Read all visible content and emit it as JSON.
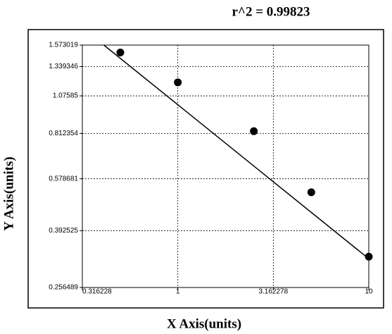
{
  "chart_data": {
    "type": "scatter",
    "annotation": "r^2  =  0.99823",
    "x_label": "X Axis(units)",
    "y_label": "Y Axis(units)",
    "x_log": true,
    "y_log": true,
    "grid": true,
    "color": "#000000",
    "x": [
      0.5,
      1,
      2.5,
      5,
      10
    ],
    "values": [
      1.488,
      1.19,
      0.826,
      0.523,
      0.323
    ],
    "fit_line": {
      "x": [
        0.41,
        10
      ],
      "y": [
        1.573019,
        0.318
      ]
    },
    "xlim": [
      0.316228,
      10
    ],
    "ylim": [
      0.256489,
      1.573019
    ],
    "xticks": [
      0.316228,
      1,
      3.162278,
      10
    ],
    "yticks": [
      0.256489,
      0.392525,
      0.578681,
      0.812354,
      1.07585,
      1.339346,
      1.573019
    ]
  }
}
